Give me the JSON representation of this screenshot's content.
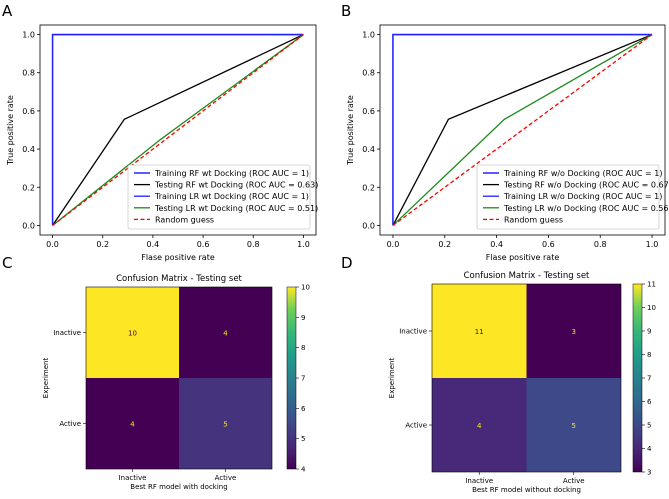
{
  "panels": {
    "a": "A",
    "b": "B",
    "c": "C",
    "d": "D"
  },
  "colors": {
    "train_rf": "#0000ff",
    "test_rf": "#000000",
    "train_lr": "#1f1fff",
    "test_lr": "#1a8a1a",
    "random": "#ff0000",
    "cm_low": "#440154",
    "cm_high": "#fde725"
  },
  "chart_data": [
    {
      "type": "line",
      "panel": "A",
      "xlabel": "Flase positive rate",
      "ylabel": "True positive rate",
      "xlim": [
        -0.05,
        1.05
      ],
      "ylim": [
        -0.05,
        1.05
      ],
      "xticks": [
        "0.0",
        "0.2",
        "0.4",
        "0.6",
        "0.8",
        "1.0"
      ],
      "yticks": [
        "0.0",
        "0.2",
        "0.4",
        "0.6",
        "0.8",
        "1.0"
      ],
      "legend_position": "bottom-right",
      "series": [
        {
          "name": "Training RF wt Docking (ROC AUC = 1)",
          "color": "#0000ff",
          "dash": false,
          "x": [
            0,
            0,
            1
          ],
          "y": [
            0,
            1,
            1
          ]
        },
        {
          "name": "Testing RF wt Docking (ROC AUC = 0.63)",
          "color": "#000000",
          "dash": false,
          "x": [
            0,
            0.286,
            1
          ],
          "y": [
            0,
            0.556,
            1
          ]
        },
        {
          "name": "Training LR wt Docking (ROC AUC = 1)",
          "color": "#1f1fff",
          "dash": false,
          "x": [
            0,
            0,
            1
          ],
          "y": [
            0,
            1,
            1
          ]
        },
        {
          "name": "Testing LR wt Docking (ROC AUC = 0.51)",
          "color": "#1a8a1a",
          "dash": false,
          "x": [
            0,
            0.43,
            1
          ],
          "y": [
            0,
            0.45,
            1
          ]
        },
        {
          "name": "Random guess",
          "color": "#ff0000",
          "dash": true,
          "x": [
            0,
            1
          ],
          "y": [
            0,
            1
          ]
        }
      ]
    },
    {
      "type": "line",
      "panel": "B",
      "xlabel": "Flase positive rate",
      "ylabel": "True positive rate",
      "xlim": [
        -0.05,
        1.05
      ],
      "ylim": [
        -0.05,
        1.05
      ],
      "xticks": [
        "0.0",
        "0.2",
        "0.4",
        "0.6",
        "0.8",
        "1.0"
      ],
      "yticks": [
        "0.0",
        "0.2",
        "0.4",
        "0.6",
        "0.8",
        "1.0"
      ],
      "legend_position": "bottom-right",
      "series": [
        {
          "name": "Training RF w/o Docking (ROC AUC = 1)",
          "color": "#0000ff",
          "dash": false,
          "x": [
            0,
            0,
            1
          ],
          "y": [
            0,
            1,
            1
          ]
        },
        {
          "name": "Testing RF w/o Docking (ROC AUC = 0.67)",
          "color": "#000000",
          "dash": false,
          "x": [
            0,
            0.214,
            1
          ],
          "y": [
            0,
            0.556,
            1
          ]
        },
        {
          "name": "Training LR w/o Docking (ROC AUC = 1)",
          "color": "#1f1fff",
          "dash": false,
          "x": [
            0,
            0,
            1
          ],
          "y": [
            0,
            1,
            1
          ]
        },
        {
          "name": "Testing LR w/o Docking (ROC AUC = 0.56)",
          "color": "#1a8a1a",
          "dash": false,
          "x": [
            0,
            0.43,
            1
          ],
          "y": [
            0,
            0.556,
            1
          ]
        },
        {
          "name": "Random guess",
          "color": "#ff0000",
          "dash": true,
          "x": [
            0,
            1
          ],
          "y": [
            0,
            1
          ]
        }
      ]
    },
    {
      "type": "heatmap",
      "panel": "C",
      "title": "Confusion Matrix - Testing set",
      "xlabel": "Best RF model with docking",
      "ylabel": "Experiment",
      "row_labels": [
        "Inactive",
        "Active"
      ],
      "col_labels": [
        "Inactive",
        "Active"
      ],
      "matrix": [
        [
          10,
          4
        ],
        [
          4,
          5
        ]
      ],
      "colorbar_range": [
        4,
        10
      ],
      "colorbar_ticks": [
        "4",
        "5",
        "6",
        "7",
        "8",
        "9",
        "10"
      ]
    },
    {
      "type": "heatmap",
      "panel": "D",
      "title": "Confusion Matrix - Testing set",
      "xlabel": "Best RF model without docking",
      "ylabel": "Experiment",
      "row_labels": [
        "Inactive",
        "Active"
      ],
      "col_labels": [
        "Inactive",
        "Active"
      ],
      "matrix": [
        [
          11,
          3
        ],
        [
          4,
          5
        ]
      ],
      "colorbar_range": [
        3,
        11
      ],
      "colorbar_ticks": [
        "3",
        "4",
        "5",
        "6",
        "7",
        "8",
        "9",
        "10",
        "11"
      ]
    }
  ]
}
